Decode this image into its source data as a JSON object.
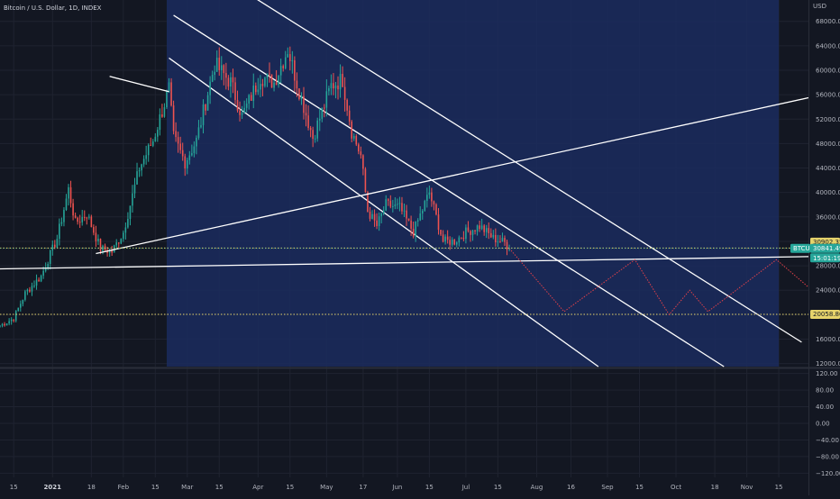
{
  "header": {
    "symbol_title": "Bitcoin / U.S. Dollar, 1D, INDEX",
    "currency": "USD"
  },
  "price_labels": {
    "upper_line": "30902.35",
    "btc_tag": "BTCUSD",
    "last_price": "30841.49",
    "countdown": "15:01:19",
    "lower_line": "20058.86"
  },
  "colors": {
    "background": "#131722",
    "grid": "#1f2330",
    "channel_fill": "#1b2b5e",
    "up_candle": "#26a69a",
    "down_candle": "#ef5350",
    "trendline": "#ffffff",
    "dotted_level": "#e6d36b",
    "projection": "#e0414a",
    "price_tag": "#26a69a"
  },
  "chart_data": {
    "type": "candlestick",
    "title": "Bitcoin / U.S. Dollar, 1D, INDEX",
    "y_axis": {
      "label": "USD",
      "ticks": [
        68000,
        64000,
        60000,
        56000,
        52000,
        48000,
        44000,
        40000,
        36000,
        32000,
        28000,
        24000,
        20000,
        16000,
        12000
      ],
      "tick_labels": [
        "68000.00",
        "64000.00",
        "60000.00",
        "56000.00",
        "52000.00",
        "48000.00",
        "44000.00",
        "40000.00",
        "36000.00",
        "32000.00",
        "28000.00",
        "24000.00",
        "20000.00",
        "16000.00",
        "12000.00"
      ],
      "ylim": [
        11500,
        71500
      ]
    },
    "x_axis": {
      "ticks": [
        "2020-12-15",
        "2021-01-01",
        "2021-01-18",
        "2021-02-01",
        "2021-02-15",
        "2021-03-01",
        "2021-03-15",
        "2021-04-01",
        "2021-04-15",
        "2021-05-01",
        "2021-05-17",
        "2021-06-01",
        "2021-06-15",
        "2021-07-01",
        "2021-07-15",
        "2021-08-01",
        "2021-08-16",
        "2021-09-01",
        "2021-09-15",
        "2021-10-01",
        "2021-10-18",
        "2021-11-01",
        "2021-11-15"
      ],
      "tick_labels": [
        "15",
        "2021",
        "18",
        "Feb",
        "15",
        "Mar",
        "15",
        "Apr",
        "15",
        "May",
        "17",
        "Jun",
        "15",
        "Jul",
        "15",
        "Aug",
        "16",
        "Sep",
        "15",
        "Oct",
        "18",
        "Nov",
        "15"
      ],
      "xlim": [
        "2020-12-09",
        "2021-11-28"
      ]
    },
    "candles_anchor_close": [
      [
        "2020-12-09",
        18200
      ],
      [
        "2020-12-15",
        19400
      ],
      [
        "2020-12-20",
        23500
      ],
      [
        "2020-12-27",
        26300
      ],
      [
        "2021-01-03",
        32500
      ],
      [
        "2021-01-08",
        40500
      ],
      [
        "2021-01-11",
        35000
      ],
      [
        "2021-01-16",
        36500
      ],
      [
        "2021-01-22",
        30800
      ],
      [
        "2021-01-27",
        30300
      ],
      [
        "2021-02-01",
        33500
      ],
      [
        "2021-02-08",
        44000
      ],
      [
        "2021-02-14",
        48500
      ],
      [
        "2021-02-21",
        57000
      ],
      [
        "2021-02-23",
        49000
      ],
      [
        "2021-02-28",
        45000
      ],
      [
        "2021-03-05",
        48500
      ],
      [
        "2021-03-13",
        61000
      ],
      [
        "2021-03-20",
        58000
      ],
      [
        "2021-03-25",
        52500
      ],
      [
        "2021-04-02",
        59000
      ],
      [
        "2021-04-08",
        58000
      ],
      [
        "2021-04-14",
        63500
      ],
      [
        "2021-04-18",
        58000
      ],
      [
        "2021-04-25",
        49000
      ],
      [
        "2021-05-03",
        57500
      ],
      [
        "2021-05-08",
        58500
      ],
      [
        "2021-05-12",
        50000
      ],
      [
        "2021-05-16",
        46000
      ],
      [
        "2021-05-19",
        37000
      ],
      [
        "2021-05-23",
        34500
      ],
      [
        "2021-05-27",
        38000
      ],
      [
        "2021-06-02",
        37500
      ],
      [
        "2021-06-08",
        33500
      ],
      [
        "2021-06-15",
        40000
      ],
      [
        "2021-06-21",
        32000
      ],
      [
        "2021-06-26",
        32000
      ],
      [
        "2021-07-01",
        33500
      ],
      [
        "2021-07-07",
        34500
      ],
      [
        "2021-07-13",
        32500
      ],
      [
        "2021-07-18",
        31800
      ],
      [
        "2021-07-20",
        30841
      ]
    ],
    "indicator_pane": {
      "ticks": [
        120,
        80,
        40,
        0,
        -40,
        -80,
        -120
      ],
      "tick_labels": [
        "120.00",
        "80.00",
        "40.00",
        "0.00",
        "−40.00",
        "−80.00",
        "−120.00"
      ],
      "ylim": [
        -130,
        130
      ]
    },
    "horizontal_levels": [
      30902.35,
      20058.86
    ],
    "last_price": 30841.49,
    "drawings": {
      "channel_box": {
        "from": "2021-02-20",
        "to": "2021-11-15",
        "top_price": 71500,
        "bottom_price": 11500
      },
      "channel_lines": [
        {
          "from": [
            "2021-03-15",
            75500
          ],
          "to": [
            "2021-11-25",
            15500
          ]
        },
        {
          "from": [
            "2021-02-23",
            69000
          ],
          "to": [
            "2021-10-22",
            11500
          ]
        },
        {
          "from": [
            "2021-02-21",
            62000
          ],
          "to": [
            "2021-08-28",
            11500
          ]
        }
      ],
      "trend_lines": [
        {
          "from": [
            "2021-01-20",
            30000
          ],
          "to": [
            "2021-11-28",
            55500
          ]
        },
        {
          "from": [
            "2020-12-09",
            27500
          ],
          "to": [
            "2021-11-28",
            29500
          ]
        },
        {
          "from": [
            "2021-01-26",
            59000
          ],
          "to": [
            "2021-02-21",
            56500
          ]
        }
      ],
      "projection_path": [
        [
          "2021-07-20",
          30841
        ],
        [
          "2021-08-13",
          20500
        ],
        [
          "2021-09-13",
          29000
        ],
        [
          "2021-09-28",
          20000
        ],
        [
          "2021-10-07",
          24000
        ],
        [
          "2021-10-15",
          20500
        ],
        [
          "2021-11-14",
          29000
        ],
        [
          "2021-11-28",
          24500
        ]
      ]
    }
  }
}
